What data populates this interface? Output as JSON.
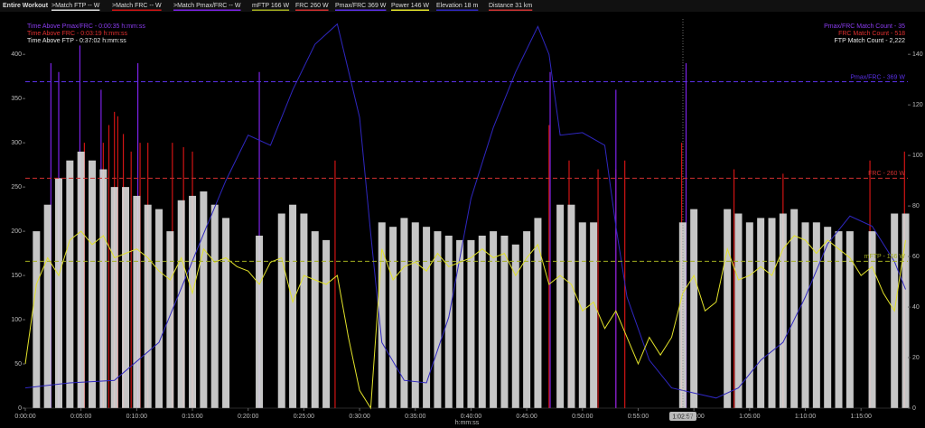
{
  "chart_data": {
    "type": "line",
    "header": "Entire Workout",
    "distance_label": "Distance 31 km",
    "x_label": "h:mm:ss",
    "cursor_label": "1:02:57",
    "x": [
      0,
      1,
      2,
      3,
      4,
      5,
      6,
      7,
      8,
      9,
      10,
      11,
      12,
      13,
      14,
      15,
      16,
      17,
      18,
      19,
      20,
      21,
      22,
      23,
      24,
      25,
      26,
      27,
      28,
      29,
      30,
      31,
      32,
      33,
      34,
      35,
      36,
      37,
      38,
      39,
      40,
      41,
      42,
      43,
      44,
      45,
      46,
      47,
      48,
      49,
      50,
      51,
      52,
      53,
      54,
      55,
      56,
      57,
      58,
      59,
      60,
      61,
      62,
      63,
      64,
      65,
      66,
      67,
      68,
      69,
      70,
      71,
      72,
      73,
      74,
      75,
      76,
      77,
      78,
      79
    ],
    "xlim": [
      0,
      79.2
    ],
    "xticks": [
      {
        "value": 0,
        "label": "0:00:00"
      },
      {
        "value": 5,
        "label": "0:05:00"
      },
      {
        "value": 10,
        "label": "0:10:00"
      },
      {
        "value": 15,
        "label": "0:15:00"
      },
      {
        "value": 20,
        "label": "0:20:00"
      },
      {
        "value": 25,
        "label": "0:25:00"
      },
      {
        "value": 30,
        "label": "0:30:00"
      },
      {
        "value": 35,
        "label": "0:35:00"
      },
      {
        "value": 40,
        "label": "0:40:00"
      },
      {
        "value": 45,
        "label": "0:45:00"
      },
      {
        "value": 50,
        "label": "0:50:00"
      },
      {
        "value": 55,
        "label": "0:55:00"
      },
      {
        "value": 60,
        "label": "1:00:00"
      },
      {
        "value": 65,
        "label": "1:05:00"
      },
      {
        "value": 70,
        "label": "1:10:00"
      },
      {
        "value": 75,
        "label": "1:15:00"
      }
    ],
    "ylim": [
      0,
      440
    ],
    "yticks": [
      0,
      50,
      100,
      150,
      200,
      250,
      300,
      350,
      400
    ],
    "y2lim": [
      0,
      154
    ],
    "y2ticks": [
      0,
      20,
      40,
      60,
      80,
      100,
      120,
      140
    ],
    "series": [
      {
        "name": "Power 146 W",
        "color": "#e2e22a",
        "style": "line",
        "values": [
          50,
          140,
          170,
          150,
          190,
          200,
          185,
          195,
          170,
          175,
          180,
          170,
          155,
          145,
          170,
          130,
          180,
          165,
          170,
          160,
          155,
          140,
          165,
          170,
          120,
          150,
          145,
          140,
          150,
          80,
          20,
          0,
          180,
          145,
          160,
          165,
          155,
          175,
          160,
          165,
          170,
          180,
          170,
          175,
          150,
          170,
          185,
          140,
          150,
          140,
          110,
          120,
          90,
          110,
          80,
          50,
          80,
          60,
          80,
          130,
          150,
          110,
          120,
          180,
          145,
          150,
          160,
          150,
          180,
          195,
          190,
          175,
          190,
          180,
          170,
          150,
          160,
          130,
          110,
          190
        ]
      },
      {
        "name": "Elevation 18 m",
        "color": "#2f27c0",
        "style": "line",
        "axis": "y2",
        "x": [
          0,
          4,
          8,
          12,
          16,
          18,
          20,
          22,
          24,
          26,
          28,
          30,
          31,
          32,
          34,
          36,
          38,
          40,
          42,
          44,
          46,
          47,
          48,
          50,
          52,
          53,
          54,
          56,
          58,
          60,
          62,
          64,
          66,
          68,
          70,
          72,
          74,
          76,
          78,
          79
        ],
        "values": [
          8,
          10,
          11,
          26,
          69,
          90,
          108,
          104,
          126,
          144,
          152,
          115,
          69,
          26,
          11,
          10,
          36,
          83,
          111,
          133,
          151,
          140,
          108,
          109,
          104,
          72,
          44,
          19,
          8,
          6,
          4,
          8,
          19,
          26,
          44,
          65,
          76,
          72,
          58,
          47
        ]
      },
      {
        "name": ">Match FTP -- W",
        "color": "#dcdcdc",
        "style": "bars",
        "values": [
          null,
          200,
          230,
          260,
          280,
          290,
          280,
          270,
          250,
          250,
          240,
          230,
          225,
          200,
          235,
          240,
          245,
          230,
          215,
          null,
          null,
          195,
          null,
          220,
          230,
          220,
          200,
          190,
          null,
          null,
          null,
          null,
          210,
          205,
          215,
          210,
          205,
          200,
          195,
          190,
          190,
          195,
          200,
          195,
          185,
          200,
          215,
          null,
          230,
          230,
          210,
          210,
          null,
          null,
          null,
          null,
          null,
          null,
          null,
          210,
          225,
          null,
          null,
          225,
          220,
          210,
          215,
          215,
          220,
          225,
          210,
          210,
          205,
          200,
          200,
          null,
          200,
          null,
          220,
          220
        ]
      },
      {
        "name": ">Match FRC -- W",
        "color": "#d01414",
        "style": "spikes",
        "x": [
          5.3,
          7,
          7.5,
          8,
          8.3,
          8.8,
          9.5,
          10.3,
          11,
          13.2,
          14.2,
          15,
          27.8,
          47,
          48.8,
          51.4,
          53,
          53.8,
          58.9,
          63.6,
          68,
          75.8,
          78.9
        ],
        "values": [
          300,
          300,
          320,
          335,
          330,
          310,
          290,
          300,
          300,
          300,
          295,
          290,
          280,
          320,
          280,
          270,
          270,
          280,
          300,
          270,
          265,
          280,
          290
        ]
      },
      {
        "name": ">Match Pmax/FRC -- W",
        "color": "#7b22e6",
        "style": "spikes",
        "x": [
          2.3,
          3,
          4.9,
          6.8,
          10.1,
          21,
          47.1,
          53,
          59.3
        ],
        "values": [
          390,
          380,
          410,
          360,
          390,
          380,
          380,
          360,
          390
        ]
      }
    ],
    "reference_lines": [
      {
        "name": "mFTP 166 W",
        "label": "mFTP - 166 W",
        "value": 166,
        "color": "#a3ad1f"
      },
      {
        "name": "FRC 260 W",
        "label": "FRC - 260 W",
        "value": 260,
        "color": "#d03030"
      },
      {
        "name": "Pmax/FRC 369 W",
        "label": "Pmax/FRC - 369 W",
        "value": 369,
        "color": "#5a30e8"
      }
    ],
    "annotations_left": [
      {
        "text": "Time Above Pmax/FRC - 0:00:35 h:mm:ss",
        "color": "#8a3cf0"
      },
      {
        "text": "Time Above FRC - 0:03:19 h:mm:ss",
        "color": "#e03030"
      },
      {
        "text": "Time Above FTP - 0:37:02 h:mm:ss",
        "color": "#e8e8e8"
      }
    ],
    "annotations_right": [
      {
        "text": "Pmax/FRC Match Count - 35",
        "color": "#8a3cf0"
      },
      {
        "text": "FRC Match Count - 518",
        "color": "#e03030"
      },
      {
        "text": "FTP Match Count - 2,222",
        "color": "#e8e8e8"
      }
    ]
  }
}
